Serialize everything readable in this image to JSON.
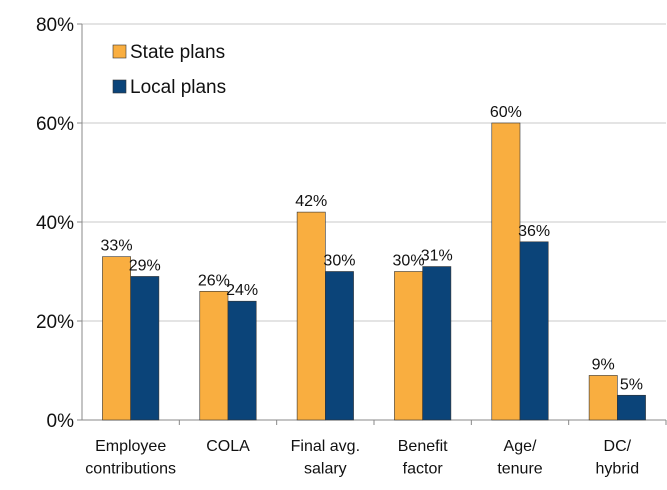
{
  "chart_data": {
    "type": "bar",
    "categories": [
      "Employee\ncontributions",
      "COLA",
      "Final avg.\nsalary",
      "Benefit\nfactor",
      "Age/\ntenure",
      "DC/\nhybrid"
    ],
    "series": [
      {
        "name": "State plans",
        "color": "#f9ae40",
        "values": [
          33,
          26,
          42,
          30,
          60,
          9
        ],
        "value_labels": [
          "33%",
          "26%",
          "42%",
          "30%",
          "60%",
          "9%"
        ]
      },
      {
        "name": "Local plans",
        "color": "#0b4479",
        "values": [
          29,
          24,
          30,
          31,
          36,
          5
        ],
        "value_labels": [
          "29%",
          "24%",
          "30%",
          "31%",
          "36%",
          "5%"
        ]
      }
    ],
    "ylim": [
      0,
      80
    ],
    "yticks": [
      {
        "value": 0,
        "label": "0%"
      },
      {
        "value": 20,
        "label": "20%"
      },
      {
        "value": 40,
        "label": "40%"
      },
      {
        "value": 60,
        "label": "60%"
      },
      {
        "value": 80,
        "label": "80%"
      }
    ],
    "grid": true,
    "legend": "upper left"
  }
}
